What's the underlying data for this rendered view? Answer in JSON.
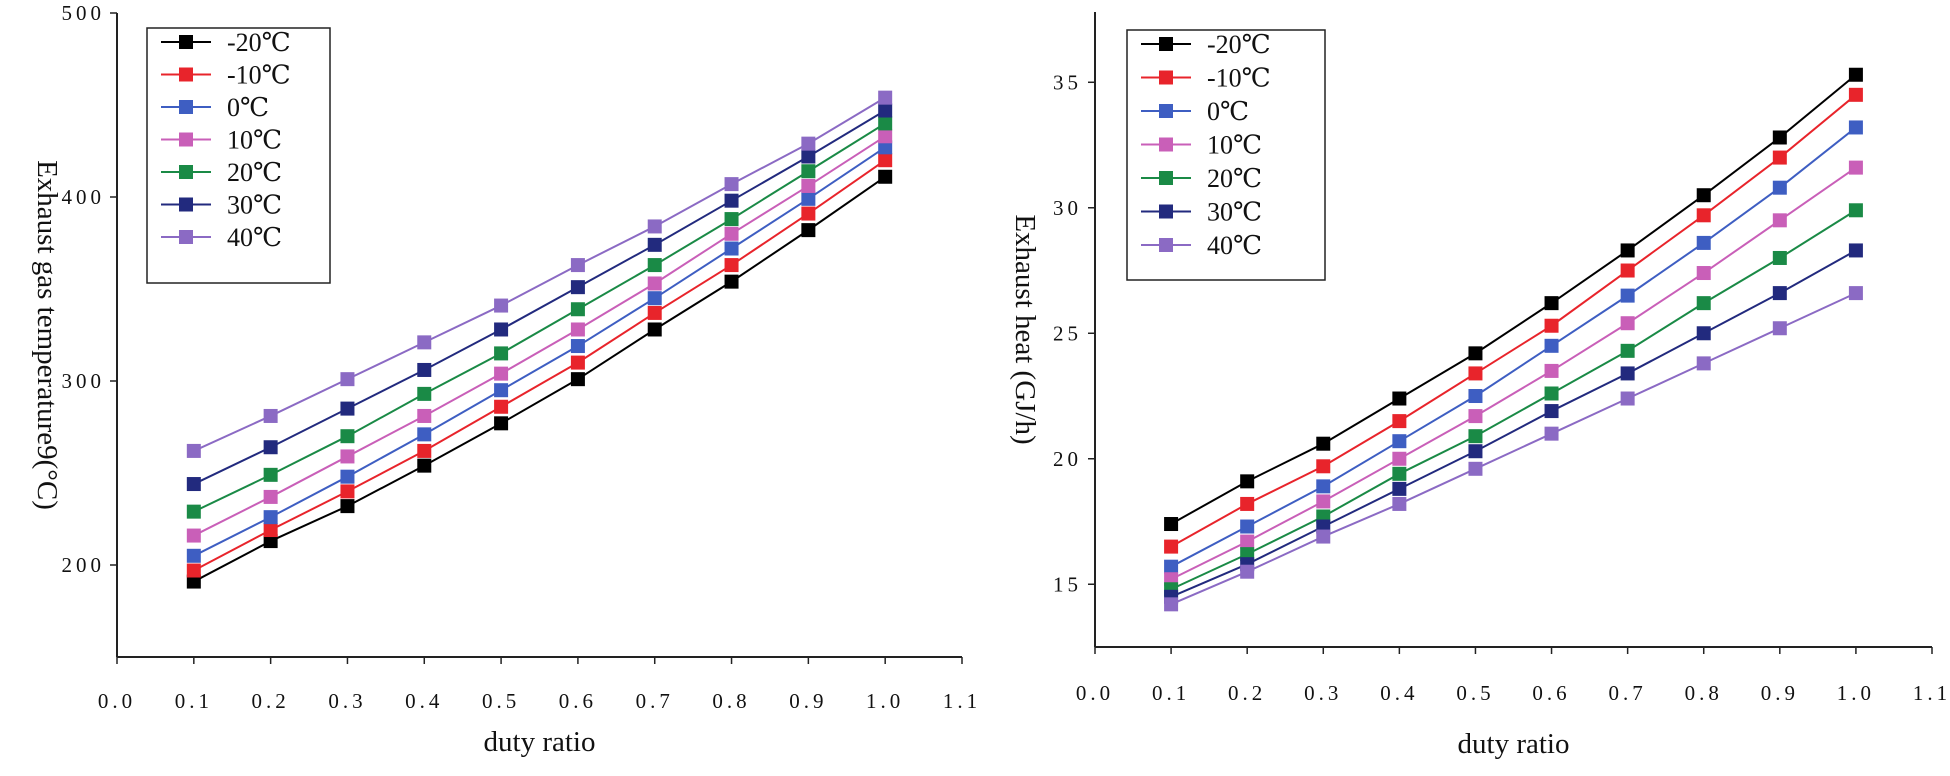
{
  "chart_data": [
    {
      "type": "line",
      "xlabel": "duty ratio",
      "ylabel": "Exhaust  gas  temperature9(°C)",
      "xlim": [
        0.0,
        1.1
      ],
      "ylim": [
        150,
        500
      ],
      "xticks": [
        0.0,
        0.1,
        0.2,
        0.3,
        0.4,
        0.5,
        0.6,
        0.7,
        0.8,
        0.9,
        1.0,
        1.1
      ],
      "xtick_labels": [
        "0.0",
        "0.1",
        "0.2",
        "0.3",
        "0.4",
        "0.5",
        "0.6",
        "0.7",
        "0.8",
        "0.9",
        "1.0",
        "1.1"
      ],
      "yticks": [
        200,
        300,
        400,
        500
      ],
      "ytick_labels": [
        "200",
        "300",
        "400",
        "500"
      ],
      "legend_position": "top-left",
      "grid": false,
      "x": [
        0.1,
        0.2,
        0.3,
        0.4,
        0.5,
        0.6,
        0.7,
        0.8,
        0.9,
        1.0
      ],
      "series": [
        {
          "name": "-20℃",
          "color": "#000000",
          "values": [
            191,
            213,
            232,
            254,
            277,
            301,
            328,
            354,
            382,
            411
          ]
        },
        {
          "name": "-10℃",
          "color": "#e8242b",
          "values": [
            197,
            219,
            240,
            262,
            286,
            310,
            337,
            363,
            391,
            420
          ]
        },
        {
          "name": "0℃",
          "color": "#3e5ec2",
          "values": [
            205,
            226,
            248,
            271,
            295,
            319,
            345,
            372,
            399,
            427
          ]
        },
        {
          "name": "10℃",
          "color": "#c95fb8",
          "values": [
            216,
            237,
            259,
            281,
            304,
            328,
            353,
            380,
            406,
            433
          ]
        },
        {
          "name": "20℃",
          "color": "#1a8a46",
          "values": [
            229,
            249,
            270,
            293,
            315,
            339,
            363,
            388,
            414,
            440
          ]
        },
        {
          "name": "30℃",
          "color": "#222a7e",
          "values": [
            244,
            264,
            285,
            306,
            328,
            351,
            374,
            398,
            422,
            447
          ]
        },
        {
          "name": "40℃",
          "color": "#8b6ac4",
          "values": [
            262,
            281,
            301,
            321,
            341,
            363,
            384,
            407,
            429,
            454
          ]
        }
      ]
    },
    {
      "type": "line",
      "xlabel": "duty ratio",
      "ylabel": "Exhaust heat  (GJ/h)",
      "xlim": [
        0.0,
        1.1
      ],
      "ylim": [
        12.5,
        37.8
      ],
      "xticks": [
        0.0,
        0.1,
        0.2,
        0.3,
        0.4,
        0.5,
        0.6,
        0.7,
        0.8,
        0.9,
        1.0,
        1.1
      ],
      "xtick_labels": [
        "0.0",
        "0.1",
        "0.2",
        "0.3",
        "0.4",
        "0.5",
        "0.6",
        "0.7",
        "0.8",
        "0.9",
        "1.0",
        "1.1"
      ],
      "yticks": [
        15,
        20,
        25,
        30,
        35
      ],
      "ytick_labels": [
        "15",
        "20",
        "25",
        "30",
        "35"
      ],
      "legend_position": "top-left",
      "grid": false,
      "x": [
        0.1,
        0.2,
        0.3,
        0.4,
        0.5,
        0.6,
        0.7,
        0.8,
        0.9,
        1.0
      ],
      "series": [
        {
          "name": "-20℃",
          "color": "#000000",
          "values": [
            17.4,
            19.1,
            20.6,
            22.4,
            24.2,
            26.2,
            28.3,
            30.5,
            32.8,
            35.3
          ]
        },
        {
          "name": "-10℃",
          "color": "#e8242b",
          "values": [
            16.5,
            18.2,
            19.7,
            21.5,
            23.4,
            25.3,
            27.5,
            29.7,
            32.0,
            34.5
          ]
        },
        {
          "name": "0℃",
          "color": "#3e5ec2",
          "values": [
            15.7,
            17.3,
            18.9,
            20.7,
            22.5,
            24.5,
            26.5,
            28.6,
            30.8,
            33.2
          ]
        },
        {
          "name": "10℃",
          "color": "#c95fb8",
          "values": [
            15.2,
            16.7,
            18.3,
            20.0,
            21.7,
            23.5,
            25.4,
            27.4,
            29.5,
            31.6
          ]
        },
        {
          "name": "20℃",
          "color": "#1a8a46",
          "values": [
            14.8,
            16.2,
            17.7,
            19.4,
            20.9,
            22.6,
            24.3,
            26.2,
            28.0,
            29.9
          ]
        },
        {
          "name": "30℃",
          "color": "#222a7e",
          "values": [
            14.5,
            15.8,
            17.3,
            18.8,
            20.3,
            21.9,
            23.4,
            25.0,
            26.6,
            28.3
          ]
        },
        {
          "name": "40℃",
          "color": "#8b6ac4",
          "values": [
            14.2,
            15.5,
            16.9,
            18.2,
            19.6,
            21.0,
            22.4,
            23.8,
            25.2,
            26.6
          ]
        }
      ]
    }
  ]
}
